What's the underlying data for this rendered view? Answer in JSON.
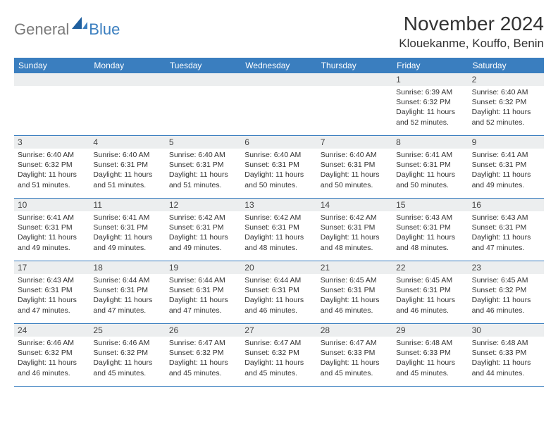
{
  "logo": {
    "general": "General",
    "blue": "Blue"
  },
  "title": "November 2024",
  "location": "Klouekanme, Kouffo, Benin",
  "colors": {
    "header_bg": "#3a7ebf",
    "header_text": "#ffffff",
    "daynum_bg": "#eceeef",
    "border": "#3a7ebf",
    "text": "#333333",
    "logo_gray": "#7a7a7a",
    "logo_blue": "#3a7ebf"
  },
  "weekdays": [
    "Sunday",
    "Monday",
    "Tuesday",
    "Wednesday",
    "Thursday",
    "Friday",
    "Saturday"
  ],
  "weeks": [
    [
      {
        "n": "",
        "sr": "",
        "ss": "",
        "dl": ""
      },
      {
        "n": "",
        "sr": "",
        "ss": "",
        "dl": ""
      },
      {
        "n": "",
        "sr": "",
        "ss": "",
        "dl": ""
      },
      {
        "n": "",
        "sr": "",
        "ss": "",
        "dl": ""
      },
      {
        "n": "",
        "sr": "",
        "ss": "",
        "dl": ""
      },
      {
        "n": "1",
        "sr": "Sunrise: 6:39 AM",
        "ss": "Sunset: 6:32 PM",
        "dl": "Daylight: 11 hours and 52 minutes."
      },
      {
        "n": "2",
        "sr": "Sunrise: 6:40 AM",
        "ss": "Sunset: 6:32 PM",
        "dl": "Daylight: 11 hours and 52 minutes."
      }
    ],
    [
      {
        "n": "3",
        "sr": "Sunrise: 6:40 AM",
        "ss": "Sunset: 6:32 PM",
        "dl": "Daylight: 11 hours and 51 minutes."
      },
      {
        "n": "4",
        "sr": "Sunrise: 6:40 AM",
        "ss": "Sunset: 6:31 PM",
        "dl": "Daylight: 11 hours and 51 minutes."
      },
      {
        "n": "5",
        "sr": "Sunrise: 6:40 AM",
        "ss": "Sunset: 6:31 PM",
        "dl": "Daylight: 11 hours and 51 minutes."
      },
      {
        "n": "6",
        "sr": "Sunrise: 6:40 AM",
        "ss": "Sunset: 6:31 PM",
        "dl": "Daylight: 11 hours and 50 minutes."
      },
      {
        "n": "7",
        "sr": "Sunrise: 6:40 AM",
        "ss": "Sunset: 6:31 PM",
        "dl": "Daylight: 11 hours and 50 minutes."
      },
      {
        "n": "8",
        "sr": "Sunrise: 6:41 AM",
        "ss": "Sunset: 6:31 PM",
        "dl": "Daylight: 11 hours and 50 minutes."
      },
      {
        "n": "9",
        "sr": "Sunrise: 6:41 AM",
        "ss": "Sunset: 6:31 PM",
        "dl": "Daylight: 11 hours and 49 minutes."
      }
    ],
    [
      {
        "n": "10",
        "sr": "Sunrise: 6:41 AM",
        "ss": "Sunset: 6:31 PM",
        "dl": "Daylight: 11 hours and 49 minutes."
      },
      {
        "n": "11",
        "sr": "Sunrise: 6:41 AM",
        "ss": "Sunset: 6:31 PM",
        "dl": "Daylight: 11 hours and 49 minutes."
      },
      {
        "n": "12",
        "sr": "Sunrise: 6:42 AM",
        "ss": "Sunset: 6:31 PM",
        "dl": "Daylight: 11 hours and 49 minutes."
      },
      {
        "n": "13",
        "sr": "Sunrise: 6:42 AM",
        "ss": "Sunset: 6:31 PM",
        "dl": "Daylight: 11 hours and 48 minutes."
      },
      {
        "n": "14",
        "sr": "Sunrise: 6:42 AM",
        "ss": "Sunset: 6:31 PM",
        "dl": "Daylight: 11 hours and 48 minutes."
      },
      {
        "n": "15",
        "sr": "Sunrise: 6:43 AM",
        "ss": "Sunset: 6:31 PM",
        "dl": "Daylight: 11 hours and 48 minutes."
      },
      {
        "n": "16",
        "sr": "Sunrise: 6:43 AM",
        "ss": "Sunset: 6:31 PM",
        "dl": "Daylight: 11 hours and 47 minutes."
      }
    ],
    [
      {
        "n": "17",
        "sr": "Sunrise: 6:43 AM",
        "ss": "Sunset: 6:31 PM",
        "dl": "Daylight: 11 hours and 47 minutes."
      },
      {
        "n": "18",
        "sr": "Sunrise: 6:44 AM",
        "ss": "Sunset: 6:31 PM",
        "dl": "Daylight: 11 hours and 47 minutes."
      },
      {
        "n": "19",
        "sr": "Sunrise: 6:44 AM",
        "ss": "Sunset: 6:31 PM",
        "dl": "Daylight: 11 hours and 47 minutes."
      },
      {
        "n": "20",
        "sr": "Sunrise: 6:44 AM",
        "ss": "Sunset: 6:31 PM",
        "dl": "Daylight: 11 hours and 46 minutes."
      },
      {
        "n": "21",
        "sr": "Sunrise: 6:45 AM",
        "ss": "Sunset: 6:31 PM",
        "dl": "Daylight: 11 hours and 46 minutes."
      },
      {
        "n": "22",
        "sr": "Sunrise: 6:45 AM",
        "ss": "Sunset: 6:31 PM",
        "dl": "Daylight: 11 hours and 46 minutes."
      },
      {
        "n": "23",
        "sr": "Sunrise: 6:45 AM",
        "ss": "Sunset: 6:32 PM",
        "dl": "Daylight: 11 hours and 46 minutes."
      }
    ],
    [
      {
        "n": "24",
        "sr": "Sunrise: 6:46 AM",
        "ss": "Sunset: 6:32 PM",
        "dl": "Daylight: 11 hours and 46 minutes."
      },
      {
        "n": "25",
        "sr": "Sunrise: 6:46 AM",
        "ss": "Sunset: 6:32 PM",
        "dl": "Daylight: 11 hours and 45 minutes."
      },
      {
        "n": "26",
        "sr": "Sunrise: 6:47 AM",
        "ss": "Sunset: 6:32 PM",
        "dl": "Daylight: 11 hours and 45 minutes."
      },
      {
        "n": "27",
        "sr": "Sunrise: 6:47 AM",
        "ss": "Sunset: 6:32 PM",
        "dl": "Daylight: 11 hours and 45 minutes."
      },
      {
        "n": "28",
        "sr": "Sunrise: 6:47 AM",
        "ss": "Sunset: 6:33 PM",
        "dl": "Daylight: 11 hours and 45 minutes."
      },
      {
        "n": "29",
        "sr": "Sunrise: 6:48 AM",
        "ss": "Sunset: 6:33 PM",
        "dl": "Daylight: 11 hours and 45 minutes."
      },
      {
        "n": "30",
        "sr": "Sunrise: 6:48 AM",
        "ss": "Sunset: 6:33 PM",
        "dl": "Daylight: 11 hours and 44 minutes."
      }
    ]
  ]
}
